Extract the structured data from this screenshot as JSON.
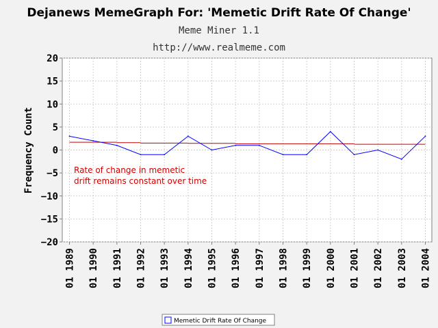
{
  "colors": {
    "background": "#f2f2f2",
    "plot_background": "#ffffff",
    "series_line": "#0000ff",
    "trend_line": "#c00000",
    "annotation": "#d00000",
    "grid": "#d0d0d0"
  },
  "header": {
    "title": "Dejanews MemeGraph For: 'Memetic Drift Rate Of Change'",
    "subtitle1": "Meme Miner 1.1",
    "subtitle2": "http://www.realmeme.com"
  },
  "annotation": {
    "line1": "Rate of change in memetic",
    "line2": "drift remains constant over time"
  },
  "legend": {
    "label": "Memetic Drift Rate Of Change"
  },
  "chart_data": {
    "type": "line",
    "title": "Dejanews MemeGraph For: 'Memetic Drift Rate Of Change'",
    "ylabel": "Frequency Count",
    "xlabel": "",
    "ylim": [
      -20,
      20
    ],
    "y_ticks": [
      20,
      15,
      10,
      5,
      0,
      -5,
      -10,
      -15,
      -20
    ],
    "categories": [
      "01 1989",
      "01 1990",
      "01 1991",
      "01 1992",
      "01 1993",
      "01 1994",
      "01 1995",
      "01 1996",
      "01 1997",
      "01 1998",
      "01 1999",
      "01 2000",
      "01 2001",
      "01 2002",
      "01 2003",
      "01 2004"
    ],
    "series": [
      {
        "name": "Memetic Drift Rate Of Change",
        "values": [
          3,
          2,
          1,
          -1,
          -1,
          3,
          0,
          1,
          1,
          -1,
          -1,
          4,
          -1,
          0,
          -2,
          3
        ]
      }
    ],
    "trend_segments": [
      {
        "from": "01 1989",
        "to": "01 1991",
        "y": 1.7
      },
      {
        "from": "01 1991",
        "to": "01 1992",
        "y": 1.6
      },
      {
        "from": "01 1992",
        "to": "01 1994",
        "y": 1.5
      },
      {
        "from": "01 1994",
        "to": "01 1996",
        "y": 1.45
      },
      {
        "from": "01 1996",
        "to": "01 2001",
        "y": 1.35
      },
      {
        "from": "01 2001",
        "to": "01 2004",
        "y": 1.25
      }
    ],
    "grid": true,
    "legend_position": "bottom-center"
  }
}
